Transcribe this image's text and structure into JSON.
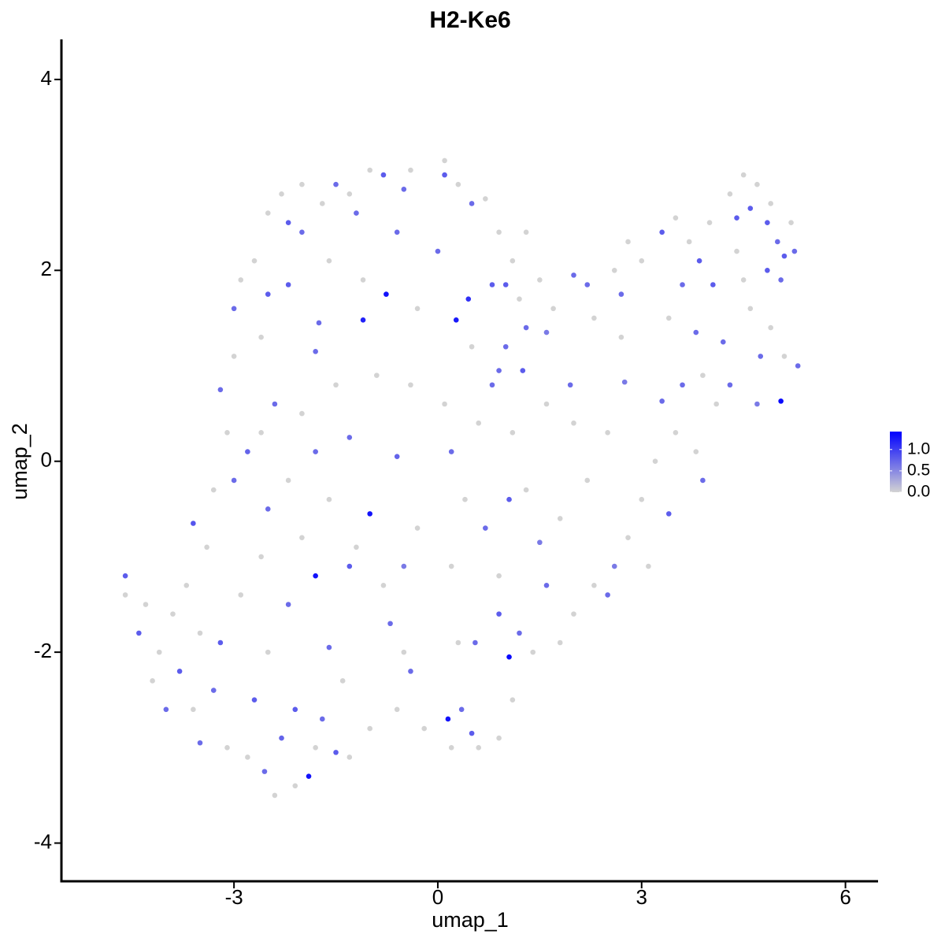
{
  "chart_data": {
    "type": "scatter",
    "title": "H2-Ke6",
    "xlabel": "umap_1",
    "ylabel": "umap_2",
    "xlim": [
      -5.54,
      6.48
    ],
    "ylim": [
      -4.4,
      4.42
    ],
    "xticks": [
      -3,
      0,
      3,
      6
    ],
    "yticks": [
      -4,
      -2,
      0,
      2,
      4
    ],
    "colorbar": {
      "lim": [
        0,
        1.42
      ],
      "colors": [
        "#d3d3d3",
        "#0000ff"
      ],
      "ticks": [
        {
          "value": 0,
          "label": "0.0"
        },
        0.5,
        {
          "value": 1,
          "label": "1.0"
        }
      ]
    },
    "x": [
      -4.6,
      -4.3,
      -4.1,
      -4.2,
      -3.9,
      -3.7,
      -3.5,
      -3.4,
      -3.3,
      -3.1,
      -3.0,
      -2.9,
      -2.7,
      -2.5,
      -2.3,
      -2.0,
      -1.7,
      -1.3,
      -1.0,
      -0.4,
      0.1,
      0.3,
      0.7,
      0.9,
      1.1,
      1.3,
      1.2,
      1.5,
      1.7,
      2.3,
      2.6,
      2.8,
      3.0,
      3.5,
      3.7,
      4.0,
      4.3,
      4.5,
      4.7,
      4.9,
      5.2,
      4.4,
      4.6,
      4.9,
      5.1,
      4.1,
      3.8,
      3.5,
      3.2,
      3.0,
      2.8,
      3.1,
      2.3,
      2.0,
      1.8,
      1.4,
      1.1,
      0.9,
      0.6,
      0.2,
      -0.2,
      -0.6,
      -1.0,
      -1.3,
      -1.8,
      -2.1,
      -2.4,
      -2.8,
      -3.1,
      -3.6,
      -2.9,
      -2.6,
      -2.0,
      -1.6,
      -1.2,
      -0.8,
      -0.3,
      0.2,
      0.4,
      0.9,
      1.3,
      1.8,
      2.2,
      2.5,
      2.0,
      1.6,
      1.1,
      0.6,
      0.1,
      -0.4,
      -0.9,
      -1.5,
      -2.0,
      -2.6,
      -2.2,
      -1.1,
      -0.3,
      0.5,
      -1.6,
      -2.6,
      0.3,
      -0.5,
      -1.4,
      -2.5,
      2.7,
      3.4,
      4.5,
      3.9,
      -4.6,
      -4.4,
      -3.6,
      -3.0,
      -2.8,
      -2.5,
      -2.2,
      -3.2,
      -2.7,
      -3.5,
      -2.3,
      -1.5,
      -2.55,
      -1.6,
      -1.3,
      -0.7,
      -0.5,
      -0.4,
      0.35,
      0.5,
      0.55,
      0.9,
      1.2,
      0.7,
      1.05,
      1.5,
      1.6,
      0.2,
      -0.6,
      -1.3,
      -1.8,
      -2.4,
      -3.2,
      -3.0,
      -2.5,
      -2.2,
      -1.75,
      -1.8,
      -2.0,
      -2.2,
      -1.5,
      -0.8,
      -0.5,
      0.1,
      0.5,
      -1.2,
      -0.6,
      0.0,
      0.8,
      1.0,
      1.0,
      1.3,
      0.9,
      1.25,
      0.8,
      1.6,
      2.0,
      2.2,
      1.95,
      2.7,
      3.3,
      3.6,
      3.85,
      4.05,
      4.4,
      4.6,
      4.85,
      5.0,
      5.1,
      5.25,
      4.85,
      5.05,
      4.2,
      3.8,
      4.3,
      3.3,
      3.6,
      2.75,
      3.4,
      3.9,
      2.6,
      2.5,
      4.75,
      5.3,
      4.7,
      -3.8,
      -4.0,
      -3.3,
      -2.1,
      -1.7,
      -0.76,
      0.27,
      -1.1,
      -1.0,
      -1.8,
      1.05,
      0.15,
      -1.9,
      5.05,
      0.45
    ],
    "y": [
      -1.4,
      -1.5,
      -2.0,
      -2.3,
      -1.6,
      -1.3,
      -1.8,
      -0.9,
      -0.3,
      0.3,
      1.1,
      1.9,
      2.1,
      2.6,
      2.8,
      2.9,
      2.7,
      2.8,
      3.05,
      3.05,
      3.15,
      2.9,
      2.75,
      2.4,
      2.1,
      2.4,
      1.7,
      1.9,
      1.6,
      1.5,
      2.0,
      2.3,
      2.1,
      2.55,
      2.3,
      2.5,
      2.8,
      3.0,
      2.9,
      2.7,
      2.5,
      2.2,
      1.6,
      1.4,
      1.1,
      0.6,
      0.1,
      0.3,
      0.0,
      -0.4,
      -0.8,
      -1.1,
      -1.3,
      -1.6,
      -1.9,
      -2.0,
      -2.5,
      -2.9,
      -3.0,
      -3.0,
      -2.8,
      -2.6,
      -2.8,
      -3.1,
      -3.0,
      -3.4,
      -3.5,
      -3.1,
      -3.0,
      -2.6,
      -1.4,
      -1.0,
      -0.8,
      -0.4,
      -0.9,
      -1.3,
      -0.7,
      -1.1,
      -0.4,
      -1.2,
      -0.3,
      -0.6,
      -0.2,
      0.3,
      0.4,
      0.6,
      0.3,
      0.4,
      0.6,
      0.8,
      0.9,
      0.8,
      0.5,
      0.3,
      -0.2,
      1.9,
      1.6,
      1.2,
      2.1,
      1.3,
      -1.9,
      -2.0,
      -2.3,
      -2.0,
      1.3,
      1.5,
      1.9,
      0.9,
      -1.2,
      -1.8,
      -0.65,
      -0.2,
      0.1,
      -0.5,
      -1.5,
      -1.9,
      -2.5,
      -2.95,
      -2.9,
      -3.05,
      -3.25,
      -1.95,
      -1.1,
      -1.7,
      -1.1,
      -2.2,
      -2.6,
      -2.85,
      -1.9,
      -1.6,
      -1.8,
      -0.7,
      -0.4,
      -0.85,
      -1.3,
      0.1,
      0.05,
      0.25,
      0.1,
      0.6,
      0.75,
      1.6,
      1.75,
      1.85,
      1.45,
      1.15,
      2.4,
      2.5,
      2.9,
      3.0,
      2.85,
      3.0,
      2.7,
      2.6,
      2.4,
      2.2,
      1.85,
      1.85,
      1.2,
      1.4,
      0.95,
      0.95,
      0.8,
      1.35,
      1.95,
      1.85,
      0.8,
      1.75,
      2.4,
      1.85,
      2.1,
      1.85,
      2.55,
      2.65,
      2.5,
      2.3,
      2.15,
      2.2,
      2.0,
      1.9,
      1.25,
      1.35,
      0.8,
      0.63,
      0.8,
      0.83,
      -0.55,
      -0.2,
      -1.1,
      -1.4,
      1.1,
      1.0,
      0.6,
      -2.2,
      -2.6,
      -2.4,
      -2.6,
      -2.7,
      1.75,
      1.48,
      1.48,
      -0.55,
      -1.2,
      -2.05,
      -2.7,
      -3.3,
      0.63,
      1.7
    ],
    "values": [
      0,
      0,
      0,
      0,
      0,
      0,
      0,
      0,
      0,
      0,
      0,
      0,
      0,
      0,
      0,
      0,
      0,
      0,
      0,
      0,
      0,
      0,
      0,
      0,
      0,
      0,
      0,
      0,
      0,
      0,
      0,
      0,
      0,
      0,
      0,
      0,
      0,
      0,
      0,
      0,
      0,
      0,
      0,
      0,
      0,
      0,
      0,
      0,
      0,
      0,
      0,
      0,
      0,
      0,
      0,
      0,
      0,
      0,
      0,
      0,
      0,
      0,
      0,
      0,
      0,
      0,
      0,
      0,
      0,
      0,
      0,
      0,
      0,
      0,
      0,
      0,
      0,
      0,
      0,
      0,
      0,
      0,
      0,
      0,
      0,
      0,
      0,
      0,
      0,
      0,
      0,
      0,
      0,
      0,
      0,
      0,
      0,
      0,
      0,
      0,
      0,
      0,
      0,
      0,
      0,
      0,
      0,
      0,
      0.8,
      0.8,
      0.85,
      0.7,
      0.75,
      0.7,
      0.7,
      0.8,
      0.8,
      0.7,
      0.75,
      0.8,
      0.7,
      0.7,
      0.8,
      0.7,
      0.6,
      0.7,
      0.7,
      0.8,
      0.7,
      0.8,
      0.7,
      0.7,
      0.8,
      0.6,
      0.7,
      0.7,
      0.75,
      0.7,
      0.7,
      0.7,
      0.7,
      0.7,
      0.8,
      0.8,
      0.7,
      0.7,
      0.7,
      0.8,
      0.7,
      0.8,
      0.7,
      0.8,
      0.7,
      0.7,
      0.7,
      0.7,
      0.8,
      0.8,
      0.7,
      0.7,
      0.7,
      0.8,
      0.7,
      0.6,
      0.7,
      0.7,
      0.7,
      0.7,
      0.8,
      0.7,
      0.8,
      0.8,
      0.8,
      0.8,
      0.8,
      0.7,
      0.8,
      0.7,
      0.8,
      0.7,
      0.7,
      0.7,
      0.7,
      0.7,
      0.7,
      0.6,
      0.8,
      0.7,
      0.6,
      0.7,
      0.7,
      0.7,
      0.6,
      0.8,
      0.7,
      0.7,
      0.8,
      0.7,
      1.3,
      1.25,
      1.2,
      1.3,
      1.3,
      1.35,
      1.3,
      1.3,
      1.35,
      1.1
    ]
  }
}
